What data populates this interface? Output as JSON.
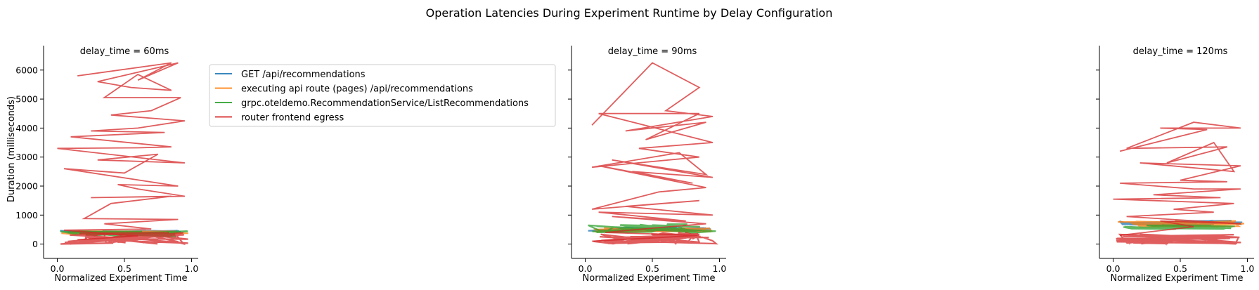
{
  "figure": {
    "title": "Operation Latencies During Experiment Runtime by Delay Configuration"
  },
  "legend": {
    "placement": "upper-right of first panel",
    "entries": [
      {
        "label": "GET /api/recommendations",
        "color": "#1f77b4"
      },
      {
        "label": "executing api route (pages) /api/recommendations",
        "color": "#ff7f0e"
      },
      {
        "label": "grpc.oteldemo.RecommendationService/ListRecommendations",
        "color": "#2ca02c"
      },
      {
        "label": "router frontend egress",
        "color": "#d62728"
      }
    ]
  },
  "chart_data": [
    {
      "type": "line",
      "title": "delay_time = 60ms",
      "xlabel": "Normalized Experiment Time",
      "ylabel": "Duration (milliseconds)",
      "xlim": [
        -0.05,
        1.05
      ],
      "ylim": [
        -300,
        6600
      ],
      "xticks": [
        "0.0",
        "0.5",
        "1.0"
      ],
      "yticks": [
        "0",
        "1000",
        "2000",
        "3000",
        "4000",
        "5000",
        "6000"
      ],
      "grid": false,
      "series": [
        {
          "name": "router frontend egress",
          "color": "#d62728",
          "band": [
            0,
            400
          ],
          "x": [
            0.15,
            0.85,
            0.6,
            0.9,
            0.3,
            0.55,
            0.85,
            0.6,
            0.35,
            0.92,
            0.7,
            0.4,
            0.95,
            0.6,
            0.25,
            0.8,
            0.1,
            0.85,
            0.6,
            0.0,
            0.95,
            0.3,
            0.75,
            0.5,
            0.05,
            0.9,
            0.45,
            0.6,
            0.95,
            0.25,
            0.85,
            0.4,
            0.2,
            0.9,
            0.35,
            0.7,
            0.05,
            0.6,
            0.15
          ],
          "y": [
            5800,
            6250,
            5650,
            6250,
            5600,
            5400,
            5300,
            5850,
            5050,
            5050,
            4600,
            4450,
            4250,
            4000,
            3900,
            3850,
            3700,
            3350,
            3320,
            3300,
            2800,
            2900,
            3100,
            2450,
            2600,
            2000,
            2050,
            1900,
            1650,
            1600,
            1650,
            1400,
            880,
            850,
            700,
            520,
            480,
            280,
            150
          ]
        },
        {
          "name": "grpc.oteldemo.RecommendationService/ListRecommendations",
          "color": "#2ca02c",
          "band": [
            250,
            450
          ]
        },
        {
          "name": "executing api route (pages) /api/recommendations",
          "color": "#ff7f0e",
          "band": [
            350,
            450
          ]
        },
        {
          "name": "GET /api/recommendations",
          "color": "#1f77b4",
          "band": [
            380,
            470
          ]
        }
      ]
    },
    {
      "type": "line",
      "title": "delay_time = 90ms",
      "xlabel": "Normalized Experiment Time",
      "ylabel": "",
      "xlim": [
        -0.05,
        1.05
      ],
      "ylim": [
        -300,
        6600
      ],
      "xticks": [
        "0.0",
        "0.5",
        "1.0"
      ],
      "yticks": [
        "0",
        "1000",
        "2000",
        "3000",
        "4000",
        "5000",
        "6000"
      ],
      "grid": false,
      "series": [
        {
          "name": "router frontend egress",
          "color": "#d62728",
          "band": [
            0,
            400
          ],
          "x": [
            0.05,
            0.5,
            0.85,
            0.6,
            0.95,
            0.3,
            0.9,
            0.45,
            0.85,
            0.1,
            0.95,
            0.4,
            0.85,
            0.05,
            0.7,
            0.9,
            0.2,
            0.95,
            0.35,
            0.8,
            0.1,
            0.9,
            0.55,
            0.05,
            0.85,
            0.3,
            0.95,
            0.1,
            0.75,
            0.2,
            0.9,
            0.5,
            0.15,
            0.85,
            0.05
          ],
          "y": [
            4100,
            6250,
            5400,
            4600,
            4400,
            3900,
            4200,
            3600,
            4500,
            4500,
            3500,
            3300,
            3000,
            2650,
            3150,
            2400,
            2900,
            2300,
            2500,
            2100,
            2700,
            1950,
            1800,
            1200,
            1500,
            1300,
            1000,
            1100,
            800,
            950,
            700,
            550,
            400,
            300,
            100
          ]
        },
        {
          "name": "grpc.oteldemo.RecommendationService/ListRecommendations",
          "color": "#2ca02c",
          "band": [
            380,
            700
          ]
        },
        {
          "name": "executing api route (pages) /api/recommendations",
          "color": "#ff7f0e",
          "band": [
            420,
            560
          ]
        },
        {
          "name": "GET /api/recommendations",
          "color": "#1f77b4",
          "band": [
            440,
            580
          ]
        }
      ]
    },
    {
      "type": "line",
      "title": "delay_time = 120ms",
      "xlabel": "Normalized Experiment Time",
      "ylabel": "",
      "xlim": [
        -0.05,
        1.05
      ],
      "ylim": [
        -300,
        6600
      ],
      "xticks": [
        "0.0",
        "0.5",
        "1.0"
      ],
      "yticks": [
        "0",
        "1000",
        "2000",
        "3000",
        "4000",
        "5000",
        "6000"
      ],
      "grid": false,
      "series": [
        {
          "name": "router frontend egress",
          "color": "#d62728",
          "band": [
            0,
            350
          ],
          "x": [
            0.05,
            0.7,
            0.35,
            0.95,
            0.6,
            0.1,
            0.85,
            0.4,
            0.75,
            0.9,
            0.2,
            0.95,
            0.5,
            0.85,
            0.05,
            0.6,
            0.95,
            0.3,
            0.8,
            0.0,
            0.9,
            0.45,
            0.75,
            0.1,
            0.95,
            0.35,
            0.6,
            0.05
          ],
          "y": [
            3200,
            3950,
            4000,
            4000,
            4200,
            3300,
            3350,
            2800,
            3500,
            2500,
            2800,
            2700,
            2200,
            2150,
            2100,
            1900,
            1900,
            1700,
            1600,
            1550,
            1400,
            1200,
            1100,
            950,
            700,
            800,
            600,
            300
          ]
        },
        {
          "name": "grpc.oteldemo.RecommendationService/ListRecommendations",
          "color": "#2ca02c",
          "band": [
            520,
            650
          ]
        },
        {
          "name": "executing api route (pages) /api/recommendations",
          "color": "#ff7f0e",
          "band": [
            600,
            800
          ]
        },
        {
          "name": "GET /api/recommendations",
          "color": "#1f77b4",
          "band": [
            620,
            820
          ]
        }
      ]
    }
  ]
}
